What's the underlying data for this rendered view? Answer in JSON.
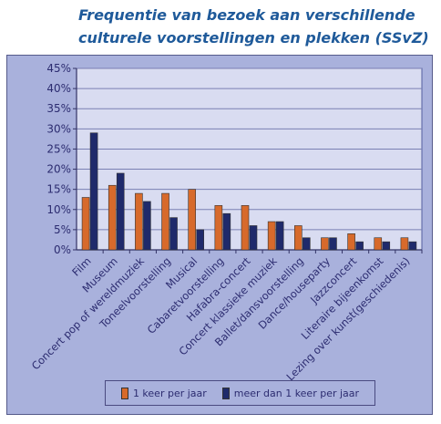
{
  "title": "Frequentie van bezoek aan verschillende culturele voorstellingen en plekken (SSvZ)",
  "chart_data": {
    "type": "bar",
    "title": "Frequentie van bezoek aan verschillende culturele voorstellingen en plekken (SSvZ)",
    "xlabel": "",
    "ylabel": "",
    "ylim": [
      0,
      45
    ],
    "yticks": [
      "0%",
      "5%",
      "10%",
      "15%",
      "20%",
      "25%",
      "30%",
      "35%",
      "40%",
      "45%"
    ],
    "grid": true,
    "legend_position": "bottom",
    "categories": [
      "Film",
      "Museum",
      "Concert pop of wereldmuziek",
      "Toneelvoorstelling",
      "Musical",
      "Cabaretvoorstelling",
      "Hafabra-concert",
      "Concert klassieke muziek",
      "Ballet/dansvoorstelling",
      "Dance/houseparty",
      "Jazzconcert",
      "Literaire bijeenkomst",
      "Lezing over kunst(geschiedenis)"
    ],
    "series": [
      {
        "name": "1 keer per jaar",
        "color": "#d76a2b",
        "values": [
          13,
          16,
          14,
          14,
          15,
          11,
          11,
          7,
          6,
          3,
          4,
          3,
          3
        ]
      },
      {
        "name": "meer dan 1 keer per jaar",
        "color": "#1f2a6b",
        "values": [
          29,
          19,
          12,
          8,
          5,
          9,
          6,
          7,
          3,
          3,
          2,
          2,
          2
        ]
      }
    ]
  }
}
